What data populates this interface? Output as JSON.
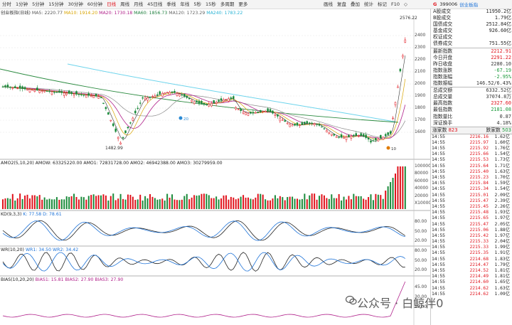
{
  "toolbar": {
    "tabs": [
      "分时",
      "1分钟",
      "5分钟",
      "15分钟",
      "30分钟",
      "60分钟",
      "日线",
      "周线",
      "月线",
      "45日线",
      "季线",
      "年线",
      "5秒",
      "15秒",
      "多周期",
      "更多"
    ],
    "active_tab": "日线",
    "tools": [
      "画线",
      "复盘",
      "叠加",
      "统计",
      "标记",
      "F10",
      "◇"
    ],
    "market_tag": "G",
    "code": "399006",
    "name": "创业板指"
  },
  "price_panel": {
    "title": "创业板指(日线)",
    "ma": {
      "ma5": "MA5: 2220.77",
      "ma10": "MA10: 1914.20",
      "ma20": "MA20: 1730.18",
      "ma60": "MA60: 1856.73",
      "ma120": "MA120: 1723.29",
      "ma240": "MA240: 1783.22"
    },
    "high_label": "2576.22",
    "low_label": "1482.99",
    "marker_20": "20",
    "marker_10": "10",
    "yaxis": [
      "2400",
      "2300",
      "2200",
      "2100",
      "2000",
      "1900",
      "1800",
      "1700",
      "1600"
    ]
  },
  "volume_panel": {
    "title": "AMO2(5,10,20)",
    "values": "AMOW: 63325220.00  AMO1: 72831728.00  AMO2: 46942388.00  AMO3: 30279959.00",
    "yaxis": [
      "100000",
      "80000",
      "60000",
      "40000",
      "20000",
      "X10000"
    ]
  },
  "kd_panel": {
    "title": "KD(9,3,3)",
    "values": "K: 77.58  D: 78.61",
    "yaxis": [
      "80.00",
      "50.00",
      "20.00"
    ]
  },
  "wr_panel": {
    "title": "WR(10,20)",
    "values": "WR1: 34.50  WR2: 34.42",
    "yaxis": [
      "80.00",
      "50.00",
      "20.00"
    ]
  },
  "bias_panel": {
    "title": "BIAS(10,20,20)",
    "values": "BIAS1: 15.81  BIAS2: 27.90  BIAS3: 27.90",
    "yaxis": [
      "45.00",
      "30.00",
      "15.00"
    ]
  },
  "quote": [
    {
      "label": "A股成交",
      "value": "11950.2亿"
    },
    {
      "label": "B股成交",
      "value": "1.79亿"
    },
    {
      "label": "国债成交",
      "value": "2512.84亿"
    },
    {
      "label": "基金成交",
      "value": "926.60亿"
    },
    {
      "label": "权证成交",
      "value": ""
    },
    {
      "label": "债券成交",
      "value": "751.55亿"
    },
    {
      "label": "最新指数",
      "value": "2212.91"
    },
    {
      "label": "今日开盘",
      "value": "2291.22"
    },
    {
      "label": "昨日收盘",
      "value": "2280.10"
    },
    {
      "label": "指数涨跌",
      "value": "-67.19"
    },
    {
      "label": "指数涨幅",
      "value": "-2.95%"
    },
    {
      "label": "指数振幅",
      "value": "146.52/6.43%"
    },
    {
      "label": "总成交额",
      "value": "6332.52亿"
    },
    {
      "label": "总成交量",
      "value": "37074.8万"
    },
    {
      "label": "最高指数",
      "value": "2327.60"
    },
    {
      "label": "最低指数",
      "value": "2181.08"
    },
    {
      "label": "指数量比",
      "value": "0.87"
    },
    {
      "label": "深证换手",
      "value": "4.18%"
    }
  ],
  "buysell": {
    "up_label": "涨家数",
    "up_value": "823",
    "down_label": "跌家数",
    "down_value": "503"
  },
  "ticks": [
    [
      "14:55",
      "2216.16",
      "1.62亿"
    ],
    [
      "14:55",
      "2215.97",
      "1.60亿"
    ],
    [
      "14:55",
      "2215.92",
      "1.76亿"
    ],
    [
      "14:55",
      "2215.66",
      "1.54亿"
    ],
    [
      "14:55",
      "2215.53",
      "1.73亿"
    ],
    [
      "14:55",
      "2215.64",
      "1.71亿"
    ],
    [
      "14:55",
      "2215.40",
      "1.63亿"
    ],
    [
      "14:55",
      "2215.23",
      "1.70亿"
    ],
    [
      "14:55",
      "2215.84",
      "1.59亿"
    ],
    [
      "14:55",
      "2215.34",
      "1.54亿"
    ],
    [
      "14:55",
      "2215.01",
      "2.09亿"
    ],
    [
      "14:55",
      "2215.47",
      "2.39亿"
    ],
    [
      "14:55",
      "2215.45",
      "2.26亿"
    ],
    [
      "14:55",
      "2215.48",
      "1.93亿"
    ],
    [
      "14:55",
      "2215.65",
      "1.97亿"
    ],
    [
      "14:55",
      "2215.47",
      "2.05亿"
    ],
    [
      "14:55",
      "2215.06",
      "1.88亿"
    ],
    [
      "14:55",
      "2215.42",
      "1.97亿"
    ],
    [
      "14:55",
      "2215.33",
      "2.04亿"
    ],
    [
      "14:55",
      "2215.33",
      "1.99亿"
    ],
    [
      "14:55",
      "2215.35",
      "1.91亿"
    ],
    [
      "14:55",
      "2214.68",
      "1.83亿"
    ],
    [
      "14:55",
      "2214.47",
      "1.79亿"
    ],
    [
      "14:55",
      "2214.52",
      "1.81亿"
    ],
    [
      "14:55",
      "2214.49",
      "1.81亿"
    ],
    [
      "14:55",
      "2214.60",
      "1.65亿"
    ],
    [
      "14:55",
      "2214.62",
      "1.63亿"
    ],
    [
      "14:55",
      "2214.62",
      "1.09亿"
    ]
  ],
  "watermark": "公众号 · 白鲸伴0"
}
